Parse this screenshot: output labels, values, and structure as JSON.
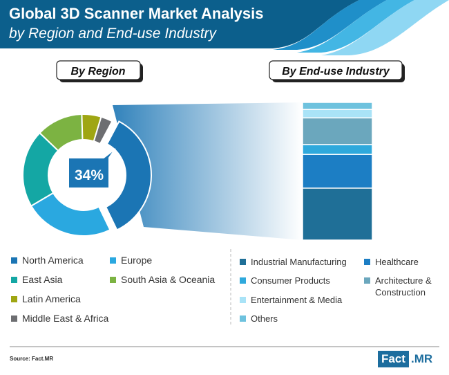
{
  "header": {
    "title": "Global 3D Scanner Market Analysis",
    "subtitle": "by Region and End-use Industry"
  },
  "footer": {
    "source": "Source: Fact.MR",
    "brand_part1": "Fact",
    "brand_part2": ".MR"
  },
  "chart_data": [
    {
      "type": "pie",
      "title": "By Region",
      "center_label": "34%",
      "categories": [
        "North America",
        "Europe",
        "East Asia",
        "South Asia & Oceania",
        "Latin America",
        "Middle East & Africa"
      ],
      "values": [
        34,
        23,
        20,
        12,
        5,
        3
      ],
      "colors": [
        "#1b75b4",
        "#2aa8e0",
        "#14a7a4",
        "#7cb342",
        "#9fa613",
        "#6d6e71"
      ],
      "highlight": "North America"
    },
    {
      "type": "bar",
      "title": "By End-use Industry",
      "stacked": true,
      "categories": [
        "Industrial Manufacturing",
        "Healthcare",
        "Consumer Products",
        "Architecture & Construction",
        "Entertainment & Media",
        "Others"
      ],
      "values": [
        37,
        24,
        7,
        19,
        6,
        5
      ],
      "colors": [
        "#1f6f97",
        "#1c7ec4",
        "#2fa9dc",
        "#6ba7bd",
        "#a9e3f7",
        "#6ec2de"
      ]
    }
  ]
}
